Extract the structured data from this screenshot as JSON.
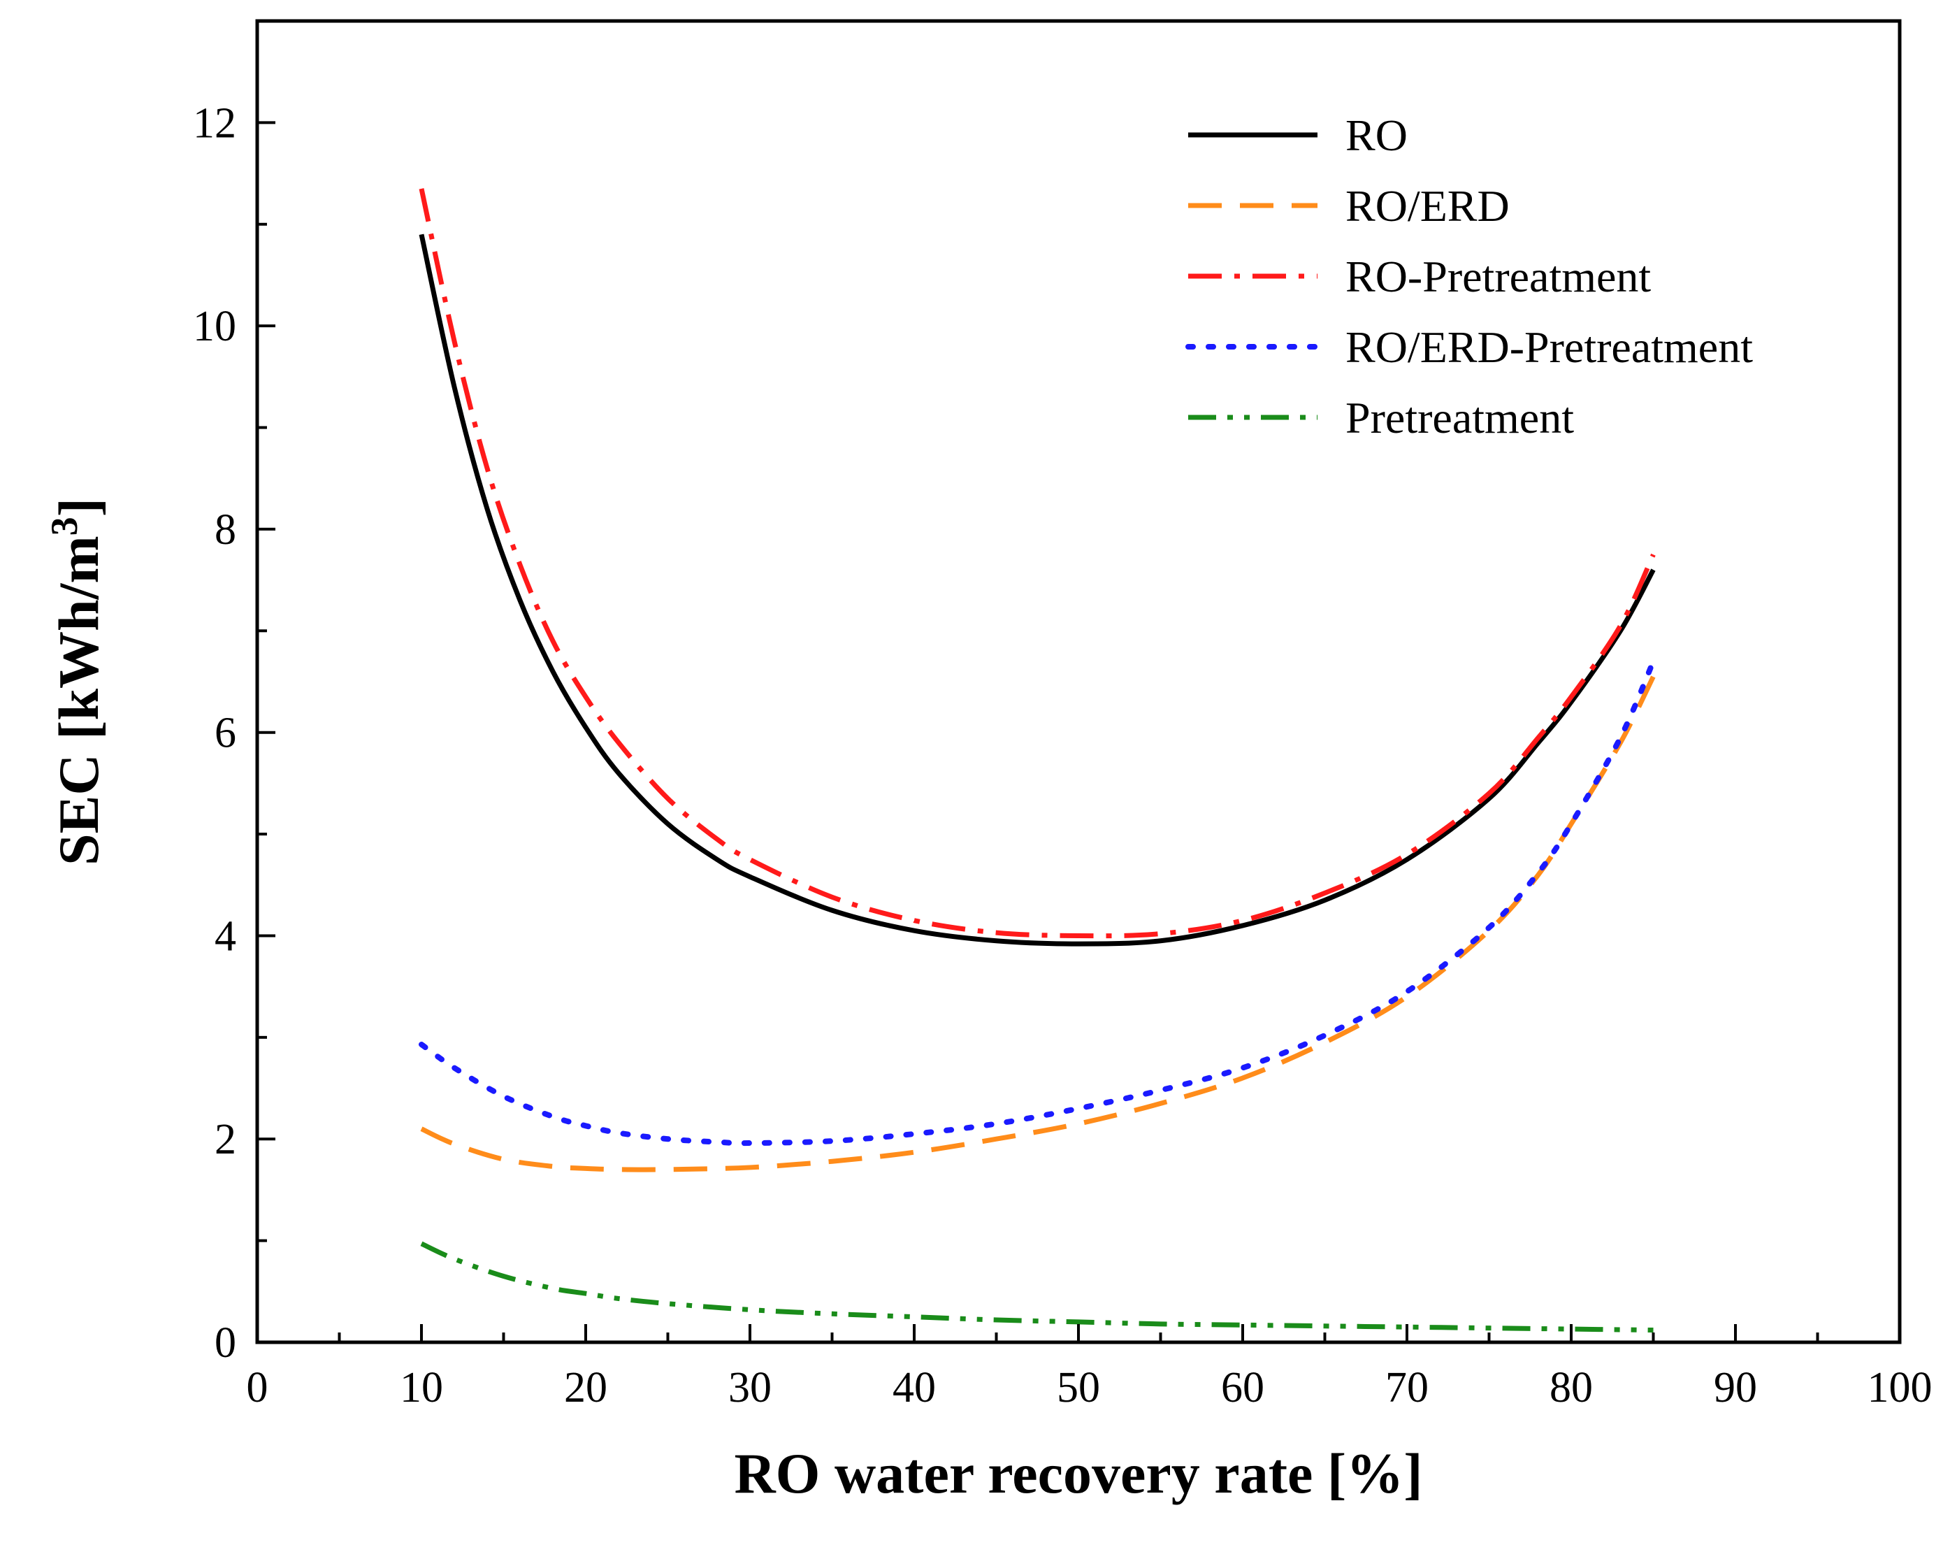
{
  "chart_data": {
    "type": "line",
    "title": "",
    "xlabel": "RO  water recovery rate [%]",
    "ylabel_main": "SEC [kWh/m",
    "ylabel_sup": "3",
    "ylabel_close": "]",
    "xlim": [
      0,
      100
    ],
    "ylim": [
      0,
      13
    ],
    "xticks": [
      0,
      10,
      20,
      30,
      40,
      50,
      60,
      70,
      80,
      90,
      100
    ],
    "xtick_labels": [
      "0",
      "10",
      "20",
      "30",
      "40",
      "50",
      "60",
      "70",
      "80",
      "90",
      "100"
    ],
    "yticks": [
      0,
      2,
      4,
      6,
      8,
      10,
      12
    ],
    "ytick_labels": [
      "0",
      "2",
      "4",
      "6",
      "8",
      "10",
      "12"
    ],
    "grid": false,
    "legend_position": "top-right",
    "series": [
      {
        "name": "RO",
        "color": "#000000",
        "style": "solid",
        "x": [
          10,
          12,
          14,
          16,
          18,
          20,
          22,
          25,
          28,
          30,
          35,
          40,
          45,
          50,
          55,
          60,
          65,
          70,
          75,
          78,
          80,
          83,
          85
        ],
        "y": [
          10.9,
          9.4,
          8.2,
          7.3,
          6.6,
          6.05,
          5.6,
          5.1,
          4.75,
          4.58,
          4.25,
          4.05,
          3.95,
          3.92,
          3.95,
          4.1,
          4.35,
          4.75,
          5.35,
          5.9,
          6.3,
          7.0,
          7.6
        ]
      },
      {
        "name": "RO/ERD",
        "color": "#ff8c1a",
        "style": "dashed",
        "x": [
          10,
          12,
          15,
          18,
          20,
          22,
          25,
          30,
          35,
          40,
          45,
          50,
          55,
          60,
          65,
          70,
          75,
          78,
          80,
          83,
          85
        ],
        "y": [
          2.1,
          1.95,
          1.8,
          1.73,
          1.71,
          1.7,
          1.7,
          1.72,
          1.78,
          1.87,
          2.0,
          2.15,
          2.35,
          2.6,
          2.95,
          3.4,
          4.05,
          4.6,
          5.1,
          5.9,
          6.55
        ]
      },
      {
        "name": "RO-Pretreatment",
        "color": "#ff1a1a",
        "style": "dashdot",
        "x": [
          10,
          12,
          14,
          16,
          18,
          20,
          22,
          25,
          28,
          30,
          35,
          40,
          45,
          50,
          55,
          60,
          65,
          70,
          75,
          78,
          80,
          83,
          85
        ],
        "y": [
          11.35,
          9.85,
          8.6,
          7.65,
          6.9,
          6.35,
          5.9,
          5.35,
          4.95,
          4.75,
          4.38,
          4.15,
          4.03,
          4.0,
          4.02,
          4.15,
          4.42,
          4.8,
          5.4,
          5.95,
          6.35,
          7.05,
          7.75
        ]
      },
      {
        "name": "RO/ERD-Pretreatment",
        "color": "#1a1aff",
        "style": "dotted",
        "x": [
          10,
          12,
          15,
          18,
          20,
          22,
          25,
          28,
          30,
          35,
          40,
          45,
          50,
          55,
          60,
          65,
          70,
          75,
          78,
          80,
          83,
          85
        ],
        "y": [
          2.93,
          2.7,
          2.42,
          2.22,
          2.13,
          2.06,
          2.0,
          1.97,
          1.96,
          1.98,
          2.05,
          2.15,
          2.3,
          2.48,
          2.7,
          3.02,
          3.45,
          4.08,
          4.62,
          5.1,
          5.95,
          6.7
        ]
      },
      {
        "name": "Pretreatment",
        "color": "#1a8c1a",
        "style": "dashdotdot",
        "x": [
          10,
          12,
          15,
          18,
          20,
          22,
          25,
          30,
          35,
          40,
          45,
          50,
          55,
          60,
          65,
          70,
          75,
          80,
          85
        ],
        "y": [
          0.97,
          0.82,
          0.65,
          0.53,
          0.48,
          0.43,
          0.38,
          0.32,
          0.28,
          0.25,
          0.22,
          0.2,
          0.18,
          0.17,
          0.16,
          0.15,
          0.14,
          0.13,
          0.12
        ]
      }
    ]
  }
}
